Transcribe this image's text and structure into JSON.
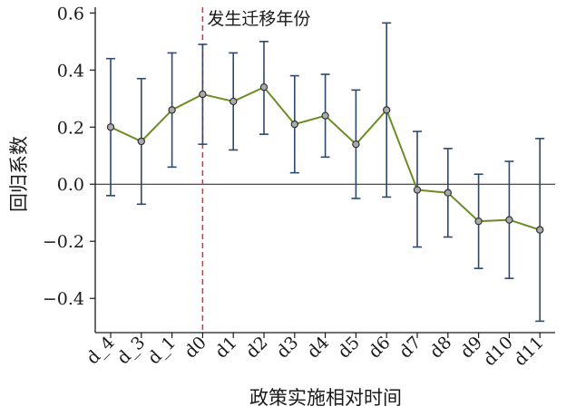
{
  "chart_data": {
    "type": "line",
    "title": "",
    "xlabel": "政策实施相对时间",
    "ylabel": "回归系数",
    "categories": [
      "d_4",
      "d_3",
      "d_1",
      "d0",
      "d1",
      "d2",
      "d3",
      "d4",
      "d5",
      "d6",
      "d7",
      "d8",
      "d9",
      "d10",
      "d11"
    ],
    "series": [
      {
        "values": [
          0.2,
          0.15,
          0.26,
          0.315,
          0.29,
          0.34,
          0.21,
          0.24,
          0.14,
          0.26,
          -0.02,
          -0.03,
          -0.13,
          -0.125,
          -0.16
        ],
        "lower": [
          -0.04,
          -0.07,
          0.06,
          0.14,
          0.12,
          0.175,
          0.04,
          0.095,
          -0.05,
          -0.045,
          -0.22,
          -0.185,
          -0.295,
          -0.33,
          -0.48
        ],
        "upper": [
          0.44,
          0.37,
          0.46,
          0.49,
          0.46,
          0.5,
          0.38,
          0.385,
          0.33,
          0.565,
          0.185,
          0.125,
          0.035,
          0.08,
          0.16
        ]
      }
    ],
    "ylim": [
      -0.52,
      0.62
    ],
    "yticks": [
      -0.4,
      -0.2,
      0.0,
      0.2,
      0.4,
      0.6
    ],
    "ytick_labels": [
      "−0.4",
      "−0.2",
      "0.0",
      "0.2",
      "0.4",
      "0.6"
    ],
    "reference_line": {
      "y": 0
    },
    "event_line": {
      "category": "d0",
      "label": "发生迁移年份"
    },
    "colors": {
      "line": "#6b8e23",
      "errorbar": "#2c4a6e",
      "event": "#e03030",
      "marker_fill": "#aaaaaa"
    }
  }
}
